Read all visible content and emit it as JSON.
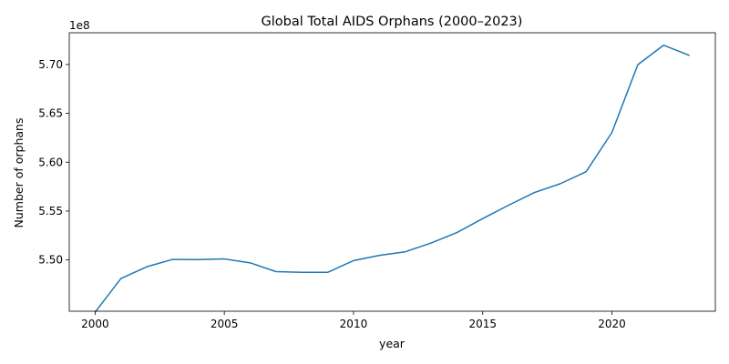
{
  "chart_data": {
    "type": "line",
    "title": "Global Total AIDS Orphans (2000–2023)",
    "xlabel": "year",
    "ylabel": "Number of orphans",
    "offset_label": "1e8",
    "xlim": [
      1999.0,
      2024.0
    ],
    "ylim": [
      5.4475,
      5.7325
    ],
    "x_ticks": [
      2000,
      2005,
      2010,
      2015,
      2020
    ],
    "y_ticks": [
      5.5,
      5.55,
      5.6,
      5.65,
      5.7
    ],
    "y_tick_labels": [
      "5.50",
      "5.55",
      "5.60",
      "5.65",
      "5.70"
    ],
    "grid": false,
    "line_color": "#1f77b4",
    "series": [
      {
        "x": [
          2000,
          2001,
          2002,
          2003,
          2004,
          2005,
          2006,
          2007,
          2008,
          2009,
          2010,
          2011,
          2012,
          2013,
          2014,
          2015,
          2016,
          2017,
          2018,
          2019,
          2020,
          2021,
          2022,
          2023
        ],
        "values": [
          5.4465,
          5.481,
          5.493,
          5.5005,
          5.5003,
          5.501,
          5.497,
          5.488,
          5.4873,
          5.4873,
          5.4993,
          5.5047,
          5.5083,
          5.5173,
          5.528,
          5.5423,
          5.556,
          5.569,
          5.578,
          5.5903,
          5.6305,
          5.6998,
          5.7198,
          5.7093
        ]
      }
    ]
  }
}
